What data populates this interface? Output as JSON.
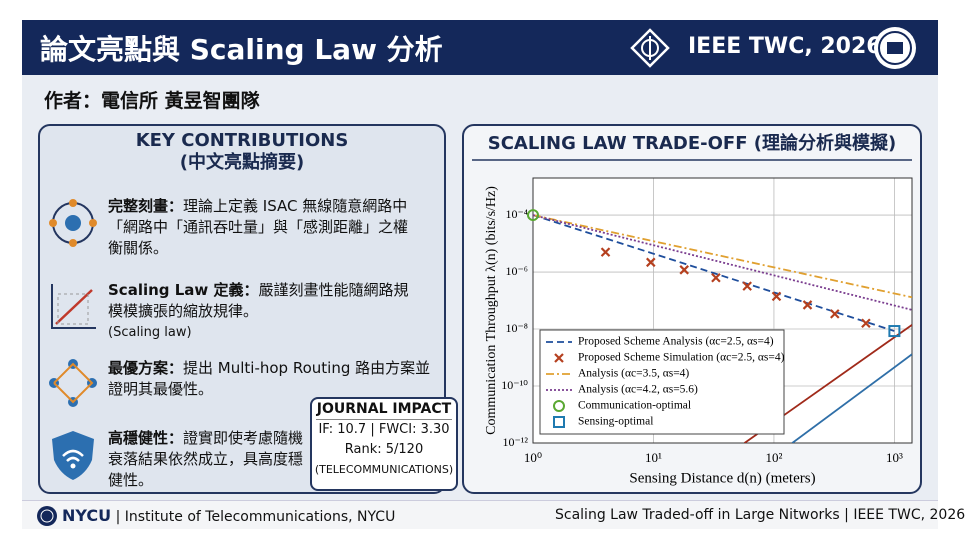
{
  "header": {
    "title": "論文亮點與 Scaling Law 分析",
    "journal": "IEEE TWC, 2026"
  },
  "author": "作者：電信所 黃昱智團隊",
  "contributions": {
    "title": "KEY CONTRIBUTIONS",
    "subtitle": "(中文亮點摘要)",
    "items": [
      {
        "heading": "完整刻畫：",
        "text": "理論上定義 ISAC 無線隨意網路中「網路中「通訊吞吐量」與「感測距離」之權衡關係。"
      },
      {
        "heading": "Scaling Law 定義：",
        "text": "嚴謹刻畫性能隨網路規模模擴張的縮放規律。",
        "note": "(Scaling law)"
      },
      {
        "heading": "最優方案：",
        "text": "提出 Multi-hop Routing 路由方案並證明其最優性。"
      },
      {
        "heading": "高穩健性：",
        "text": "證實即使考慮隨機衰落結果依然成立，具高度穩健性。"
      }
    ]
  },
  "journal_impact": {
    "title": "JOURNAL IMPACT",
    "metrics": "IF: 10.7 | FWCI: 3.30",
    "rank": "Rank: 5/120",
    "category": "(TELECOMMUNICATIONS)"
  },
  "footer": {
    "logo": "NYCU",
    "left": "| Institute of Telecommunications, NYCU",
    "right": "Scaling Law Traded-off in Large Nitworks | IEEE TWC, 2026"
  },
  "chart_data": {
    "type": "line",
    "title": "SCALING LAW TRADE-OFF (理論分析與模擬)",
    "x_label": "Sensing Distance d(n) (meters)",
    "y_label": "Communication Throughput λ(n) (bits/s/Hz)",
    "xscale": "log",
    "yscale": "log",
    "grid": true,
    "xlim": [
      1,
      1400
    ],
    "ylim": [
      1e-12,
      0.002
    ],
    "xticks": [
      {
        "value": 1,
        "label": "10⁰"
      },
      {
        "value": 10,
        "label": "10¹"
      },
      {
        "value": 100,
        "label": "10²"
      },
      {
        "value": 1000,
        "label": "10³"
      }
    ],
    "yticks": [
      {
        "value": 1e-12,
        "label": "10⁻¹²"
      },
      {
        "value": 1e-10,
        "label": "10⁻¹⁰"
      },
      {
        "value": 1e-08,
        "label": "10⁻⁸"
      },
      {
        "value": 1e-06,
        "label": "10⁻⁶"
      },
      {
        "value": 0.0001,
        "label": "10⁻⁴"
      }
    ],
    "series": [
      {
        "name": "Proposed Scheme Analysis (αc=2.5, αs=4)",
        "color": "#1f4e9c",
        "type": "line",
        "dash": "dashed",
        "x": [
          1,
          1000
        ],
        "values": [
          0.0001,
          8.5e-09
        ]
      },
      {
        "name": "Proposed Scheme Simulation (αc=2.5, αs=4)",
        "color": "#b5401f",
        "type": "scatter",
        "marker": "x",
        "x": [
          4,
          9.5,
          18,
          33,
          60,
          105,
          190,
          320,
          580
        ],
        "values": [
          5e-06,
          2.2e-06,
          1.2e-06,
          6.3e-07,
          3.2e-07,
          1.4e-07,
          7e-08,
          3.4e-08,
          1.6e-08
        ]
      },
      {
        "name": "Analysis (αc=3.5, αs=4)",
        "color": "#e0a030",
        "type": "line",
        "dash": "dashdot",
        "x": [
          1,
          1400
        ],
        "values": [
          0.0001,
          1.3e-07
        ]
      },
      {
        "name": "Analysis (αc=4.2, αs=5.6)",
        "color": "#7a3d8f",
        "type": "line",
        "dash": "dotted",
        "x": [
          1,
          1400
        ],
        "values": [
          0.0001,
          4.7e-08
        ]
      },
      {
        "name": "Communication-optimal",
        "color": "#5aa832",
        "type": "scatter",
        "marker": "circle",
        "x": [
          1
        ],
        "values": [
          0.0001
        ]
      },
      {
        "name": "Sensing-optimal",
        "color": "#1f7ab0",
        "type": "scatter",
        "marker": "square",
        "x": [
          1000
        ],
        "values": [
          8.5e-09
        ]
      },
      {
        "color": "#a02a1a",
        "type": "line",
        "dash": "solid",
        "x": [
          57,
          1400
        ],
        "values": [
          1e-12,
          1.4e-08
        ]
      },
      {
        "color": "#2f6fa8",
        "type": "line",
        "dash": "solid",
        "x": [
          142,
          1400
        ],
        "values": [
          1e-12,
          1.3e-09
        ]
      }
    ]
  }
}
